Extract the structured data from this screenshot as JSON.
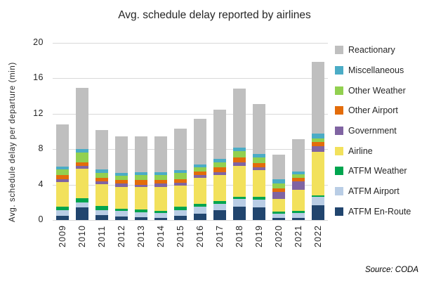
{
  "source_note": "Source: CODA",
  "chart_data": {
    "type": "bar",
    "stacked": true,
    "title": "Avg. schedule delay reported by airlines",
    "xlabel": "",
    "ylabel": "Avg. schedule delay per departure (min)",
    "ylim": [
      0,
      20
    ],
    "yticks": [
      0,
      4,
      8,
      12,
      16,
      20
    ],
    "grid": true,
    "legend_position": "right",
    "legend_order": "top-to-bottom is reverse of stack order",
    "categories": [
      "2009",
      "2010",
      "2011",
      "2012",
      "2013",
      "2014",
      "2015",
      "2016",
      "2017",
      "2018",
      "2019",
      "2020",
      "2021",
      "2022"
    ],
    "series": [
      {
        "name": "ATFM En-Route",
        "color": "#21456E",
        "values": [
          0.5,
          1.4,
          0.55,
          0.4,
          0.3,
          0.25,
          0.5,
          0.7,
          1.1,
          1.55,
          1.4,
          0.25,
          0.25,
          1.65
        ]
      },
      {
        "name": "ATFM Airport",
        "color": "#B9CDE5",
        "values": [
          0.6,
          0.6,
          0.6,
          0.6,
          0.6,
          0.55,
          0.65,
          0.8,
          0.75,
          0.8,
          0.9,
          0.5,
          0.55,
          0.95
        ]
      },
      {
        "name": "ATFM Weather",
        "color": "#00A54F",
        "values": [
          0.4,
          0.5,
          0.45,
          0.3,
          0.25,
          0.25,
          0.35,
          0.35,
          0.3,
          0.3,
          0.3,
          0.2,
          0.2,
          0.2
        ]
      },
      {
        "name": "Airline",
        "color": "#F2E15C",
        "values": [
          2.8,
          3.3,
          2.45,
          2.45,
          2.55,
          2.7,
          2.4,
          2.9,
          2.9,
          3.5,
          3.05,
          1.45,
          2.4,
          4.9
        ]
      },
      {
        "name": "Government",
        "color": "#8064A2",
        "values": [
          0.3,
          0.3,
          0.35,
          0.35,
          0.3,
          0.35,
          0.35,
          0.35,
          0.35,
          0.4,
          0.35,
          0.75,
          1.0,
          0.6
        ]
      },
      {
        "name": "Other Airport",
        "color": "#E36C0A",
        "values": [
          0.5,
          0.4,
          0.4,
          0.4,
          0.5,
          0.4,
          0.4,
          0.4,
          0.55,
          0.55,
          0.45,
          0.4,
          0.4,
          0.55
        ]
      },
      {
        "name": "Other Weather",
        "color": "#92D050",
        "values": [
          0.6,
          1.1,
          0.55,
          0.5,
          0.6,
          0.6,
          0.65,
          0.5,
          0.6,
          0.65,
          0.6,
          0.6,
          0.35,
          0.4
        ]
      },
      {
        "name": "Miscellaneous",
        "color": "#4BACC6",
        "values": [
          0.3,
          0.4,
          0.35,
          0.35,
          0.3,
          0.3,
          0.35,
          0.3,
          0.4,
          0.45,
          0.4,
          0.45,
          0.35,
          0.5
        ]
      },
      {
        "name": "Reactionary",
        "color": "#BFBFBF",
        "values": [
          4.8,
          6.9,
          4.5,
          4.1,
          4.0,
          4.05,
          4.65,
          5.1,
          5.5,
          6.65,
          5.65,
          2.8,
          3.65,
          8.1
        ]
      }
    ],
    "totals": [
      10.8,
      14.9,
      10.2,
      9.45,
      9.4,
      9.45,
      10.3,
      11.4,
      12.45,
      14.85,
      13.1,
      7.4,
      9.15,
      17.85
    ]
  }
}
